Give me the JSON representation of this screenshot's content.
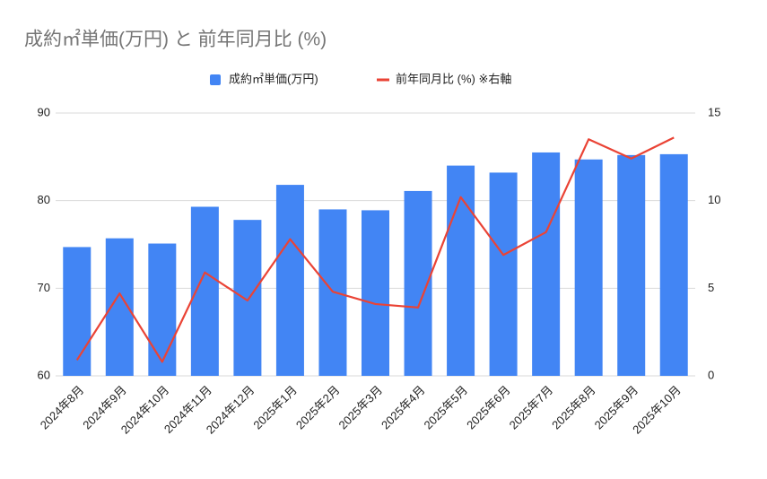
{
  "chart_data": {
    "type": "bar_line",
    "title": "成約㎡単価(万円) と 前年同月比 (%)",
    "categories": [
      "2024年8月",
      "2024年9月",
      "2024年10月",
      "2024年11月",
      "2024年12月",
      "2025年1月",
      "2025年2月",
      "2025年3月",
      "2025年4月",
      "2025年5月",
      "2025年6月",
      "2025年7月",
      "2025年8月",
      "2025年9月",
      "2025年10月"
    ],
    "series": [
      {
        "name": "成約㎡単価(万円)",
        "type": "bar",
        "color": "#4285f4",
        "values": [
          74.7,
          75.7,
          75.1,
          79.3,
          77.8,
          81.8,
          79.0,
          78.9,
          81.1,
          84.0,
          83.2,
          85.5,
          84.7,
          85.2,
          85.3
        ]
      },
      {
        "name": "前年同月比 (%) ※右軸",
        "type": "line",
        "axis": "y2",
        "color": "#ea4335",
        "values": [
          0.9,
          4.7,
          0.8,
          5.9,
          4.3,
          7.8,
          4.8,
          4.1,
          3.9,
          10.2,
          6.9,
          8.2,
          13.5,
          12.4,
          13.6
        ]
      }
    ],
    "ylim": [
      60,
      90
    ],
    "yticks": [
      60,
      70,
      80,
      90
    ],
    "y2lim": [
      0,
      15
    ],
    "y2ticks": [
      0,
      5,
      10,
      15
    ],
    "grid": true,
    "legend": "top"
  }
}
